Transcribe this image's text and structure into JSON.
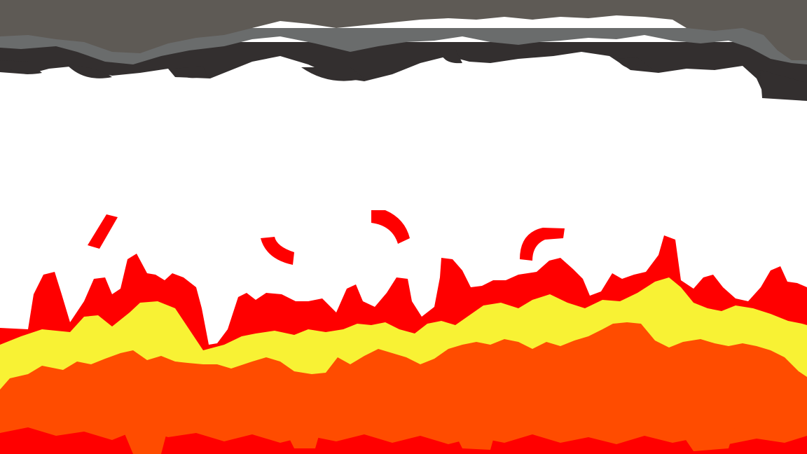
{
  "scene": {
    "background_color": "#ffffff",
    "colors": {
      "smoke_top": "#5e5a55",
      "smoke_mid": "#6a6c6c",
      "smoke_dark": "#332f2f",
      "flame_red": "#ff0000",
      "flame_yellow": "#f8f234",
      "flame_orange": "#ff4c00"
    }
  }
}
